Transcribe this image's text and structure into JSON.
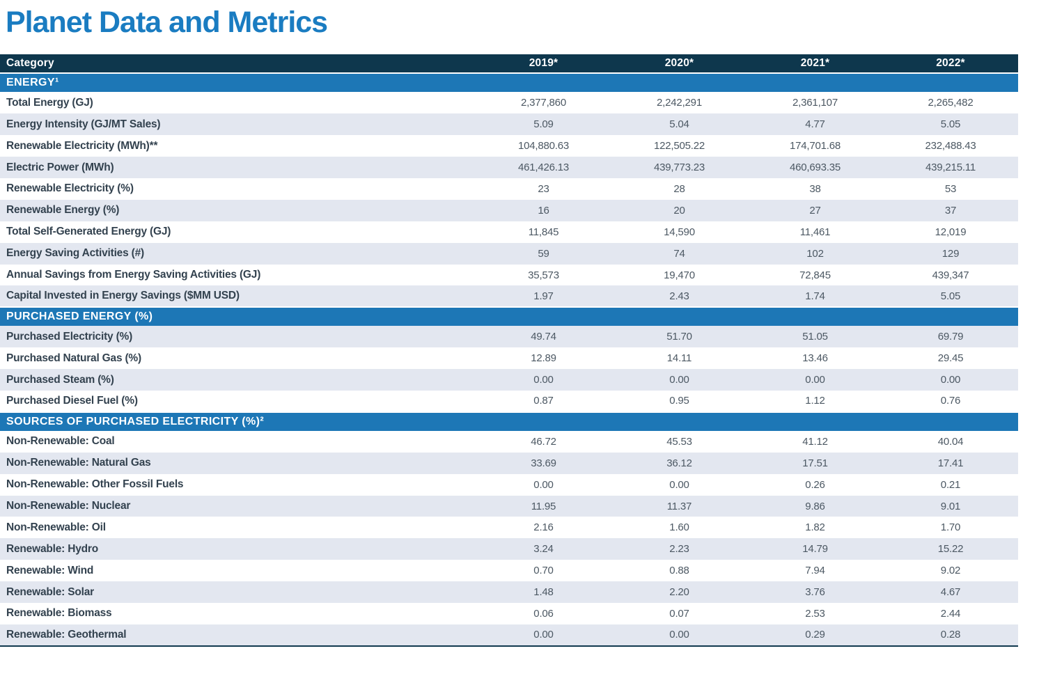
{
  "page_title": "Planet Data and Metrics",
  "colors": {
    "title_blue": "#1a7cc1",
    "header_navy": "#0e374d",
    "section_blue": "#1d77b6",
    "stripe_gray": "#e3e7f0",
    "label_text": "#33424f",
    "value_text": "#4c5863",
    "bottom_border": "#12394f"
  },
  "table": {
    "category_header": "Category",
    "year_headers": [
      "2019*",
      "2020*",
      "2021*",
      "2022*"
    ],
    "sections": [
      {
        "title": "ENERGY¹",
        "first_row_shaded": false,
        "rows": [
          {
            "label": "Total Energy (GJ)",
            "values": [
              "2,377,860",
              "2,242,291",
              "2,361,107",
              "2,265,482"
            ]
          },
          {
            "label": "Energy Intensity (GJ/MT Sales)",
            "values": [
              "5.09",
              "5.04",
              "4.77",
              "5.05"
            ]
          },
          {
            "label": "Renewable Electricity (MWh)**",
            "values": [
              "104,880.63",
              "122,505.22",
              "174,701.68",
              "232,488.43"
            ]
          },
          {
            "label": "Electric Power (MWh)",
            "values": [
              "461,426.13",
              "439,773.23",
              "460,693.35",
              "439,215.11"
            ]
          },
          {
            "label": "Renewable Electricity (%)",
            "values": [
              "23",
              "28",
              "38",
              "53"
            ]
          },
          {
            "label": "Renewable Energy (%)",
            "values": [
              "16",
              "20",
              "27",
              "37"
            ]
          },
          {
            "label": "Total Self-Generated Energy (GJ)",
            "values": [
              "11,845",
              "14,590",
              "11,461",
              "12,019"
            ]
          },
          {
            "label": "Energy Saving Activities (#)",
            "values": [
              "59",
              "74",
              "102",
              "129"
            ]
          },
          {
            "label": "Annual Savings from Energy Saving Activities (GJ)",
            "values": [
              "35,573",
              "19,470",
              "72,845",
              "439,347"
            ]
          },
          {
            "label": "Capital Invested in Energy Savings ($MM USD)",
            "values": [
              "1.97",
              "2.43",
              "1.74",
              "5.05"
            ]
          }
        ]
      },
      {
        "title": "PURCHASED ENERGY (%)",
        "first_row_shaded": true,
        "rows": [
          {
            "label": "Purchased Electricity (%)",
            "values": [
              "49.74",
              "51.70",
              "51.05",
              "69.79"
            ]
          },
          {
            "label": "Purchased Natural Gas (%)",
            "values": [
              "12.89",
              "14.11",
              "13.46",
              "29.45"
            ]
          },
          {
            "label": "Purchased Steam (%)",
            "values": [
              "0.00",
              "0.00",
              "0.00",
              "0.00"
            ]
          },
          {
            "label": "Purchased Diesel Fuel (%)",
            "values": [
              "0.87",
              "0.95",
              "1.12",
              "0.76"
            ]
          }
        ]
      },
      {
        "title": "SOURCES OF PURCHASED ELECTRICITY (%)²",
        "first_row_shaded": false,
        "rows": [
          {
            "label": "Non-Renewable: Coal",
            "values": [
              "46.72",
              "45.53",
              "41.12",
              "40.04"
            ]
          },
          {
            "label": "Non-Renewable: Natural Gas",
            "values": [
              "33.69",
              "36.12",
              "17.51",
              "17.41"
            ]
          },
          {
            "label": "Non-Renewable: Other Fossil Fuels",
            "values": [
              "0.00",
              "0.00",
              "0.26",
              "0.21"
            ]
          },
          {
            "label": "Non-Renewable: Nuclear",
            "values": [
              "11.95",
              "11.37",
              "9.86",
              "9.01"
            ]
          },
          {
            "label": "Non-Renewable: Oil",
            "values": [
              "2.16",
              "1.60",
              "1.82",
              "1.70"
            ]
          },
          {
            "label": "Renewable: Hydro",
            "values": [
              "3.24",
              "2.23",
              "14.79",
              "15.22"
            ]
          },
          {
            "label": "Renewable: Wind",
            "values": [
              "0.70",
              "0.88",
              "7.94",
              "9.02"
            ]
          },
          {
            "label": "Renewable: Solar",
            "values": [
              "1.48",
              "2.20",
              "3.76",
              "4.67"
            ]
          },
          {
            "label": "Renewable: Biomass",
            "values": [
              "0.06",
              "0.07",
              "2.53",
              "2.44"
            ]
          },
          {
            "label": "Renewable: Geothermal",
            "values": [
              "0.00",
              "0.00",
              "0.29",
              "0.28"
            ]
          }
        ]
      }
    ]
  }
}
